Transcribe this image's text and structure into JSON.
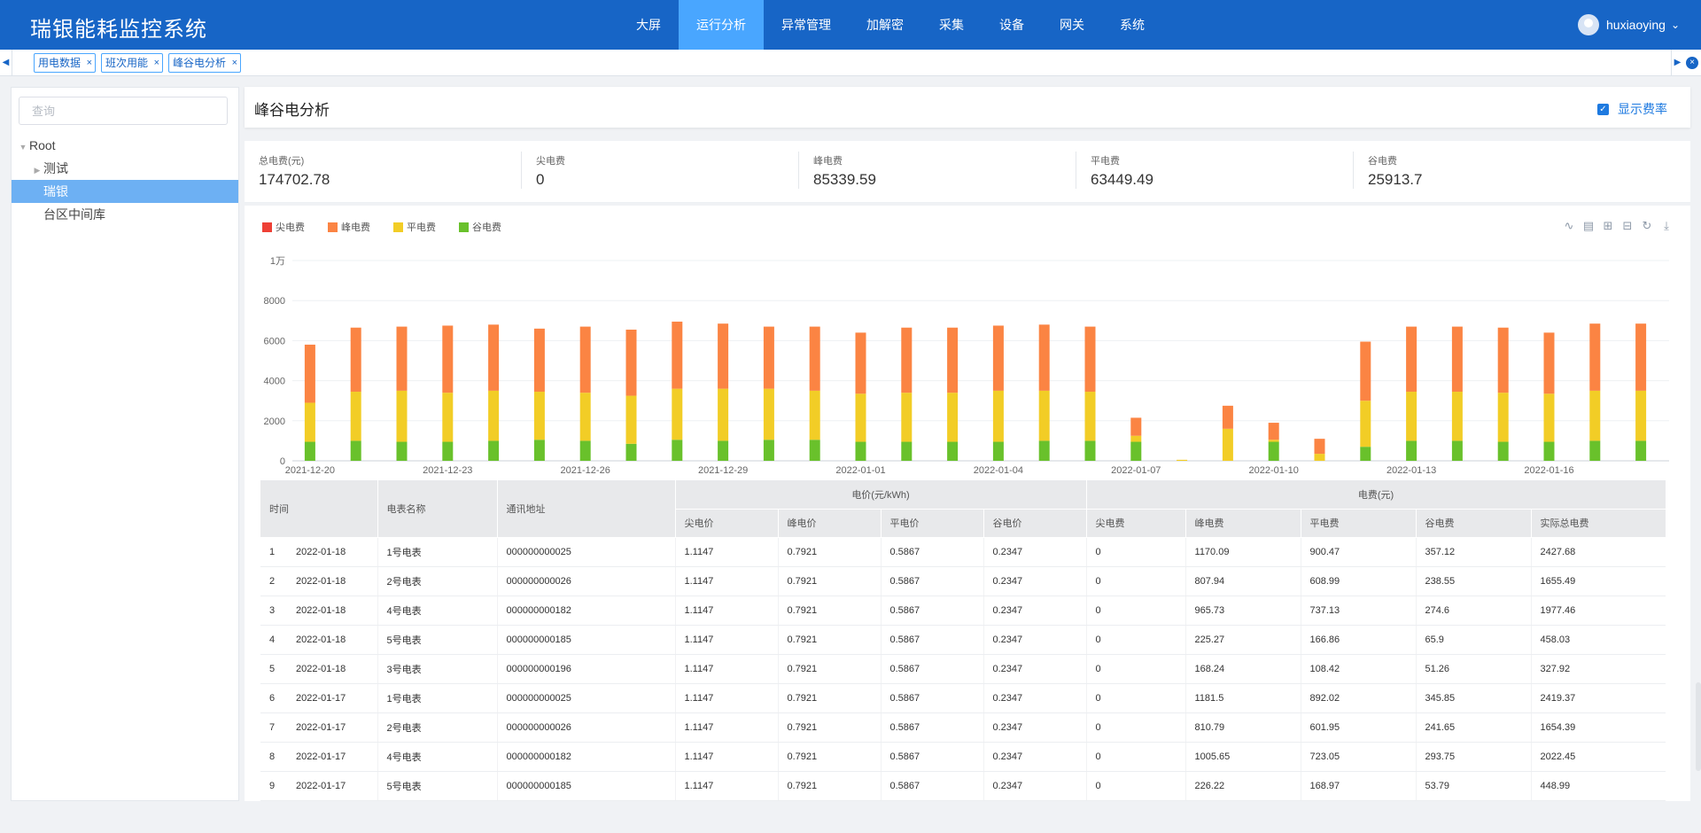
{
  "header": {
    "brand": "瑞银能耗监控系统",
    "nav": [
      "大屏",
      "运行分析",
      "异常管理",
      "加解密",
      "采集",
      "设备",
      "网关",
      "系统"
    ],
    "active_nav": 1,
    "username": "huxiaoying"
  },
  "tabs": [
    {
      "label": "用电数据"
    },
    {
      "label": "班次用能"
    },
    {
      "label": "峰谷电分析"
    }
  ],
  "sidebar": {
    "search_placeholder": "查询",
    "tree": [
      {
        "label": "Root",
        "level": 0,
        "caret": "expanded",
        "selected": false
      },
      {
        "label": "测试",
        "level": 1,
        "caret": "collapsed",
        "selected": false
      },
      {
        "label": "瑞银",
        "level": 1,
        "caret": "none",
        "selected": true
      },
      {
        "label": "台区中间库",
        "level": 1,
        "caret": "none",
        "selected": false
      }
    ]
  },
  "main": {
    "title": "峰谷电分析",
    "rate_toggle_label": "显示费率",
    "rate_toggle_checked": true,
    "stats": [
      {
        "label": "总电费(元)",
        "value": "174702.78"
      },
      {
        "label": "尖电费",
        "value": "0"
      },
      {
        "label": "峰电费",
        "value": "85339.59"
      },
      {
        "label": "平电费",
        "value": "63449.49"
      },
      {
        "label": "谷电费",
        "value": "25913.7"
      }
    ]
  },
  "colors": {
    "header_bg": "#1765c6",
    "nav_active": "#49a6ff",
    "sharp": "#ee4035",
    "peak": "#fb8443",
    "flat": "#f2cd26",
    "valley": "#69c12b"
  },
  "chart_data": {
    "type": "bar",
    "stacked": true,
    "legend": [
      "尖电费",
      "峰电费",
      "平电费",
      "谷电费"
    ],
    "legend_position": "top-left",
    "ylim": [
      0,
      10000
    ],
    "yticks": [
      "0",
      "2000",
      "4000",
      "6000",
      "8000",
      "1万"
    ],
    "x_ticks_shown": [
      "2021-12-20",
      "2021-12-23",
      "2021-12-26",
      "2021-12-29",
      "2022-01-01",
      "2022-01-04",
      "2022-01-07",
      "2022-01-10",
      "2022-01-13",
      "2022-01-16"
    ],
    "categories": [
      "2021-12-20",
      "2021-12-21",
      "2021-12-22",
      "2021-12-23",
      "2021-12-24",
      "2021-12-25",
      "2021-12-26",
      "2021-12-27",
      "2021-12-28",
      "2021-12-29",
      "2021-12-30",
      "2021-12-31",
      "2022-01-01",
      "2022-01-02",
      "2022-01-03",
      "2022-01-04",
      "2022-01-05",
      "2022-01-06",
      "2022-01-07",
      "2022-01-08",
      "2022-01-09",
      "2022-01-10",
      "2022-01-11",
      "2022-01-12",
      "2022-01-13",
      "2022-01-14",
      "2022-01-15",
      "2022-01-16",
      "2022-01-17",
      "2022-01-18"
    ],
    "series": [
      {
        "name": "尖电费",
        "values": [
          0,
          0,
          0,
          0,
          0,
          0,
          0,
          0,
          0,
          0,
          0,
          0,
          0,
          0,
          0,
          0,
          0,
          0,
          0,
          0,
          0,
          0,
          0,
          0,
          0,
          0,
          0,
          0,
          0,
          0
        ]
      },
      {
        "name": "谷电费",
        "values": [
          950,
          1000,
          950,
          950,
          1000,
          1050,
          1000,
          850,
          1050,
          1000,
          1050,
          1050,
          950,
          950,
          950,
          950,
          1000,
          1000,
          950,
          0,
          0,
          950,
          0,
          700,
          1000,
          1000,
          950,
          950,
          1000,
          1000
        ]
      },
      {
        "name": "平电费",
        "values": [
          1950,
          2450,
          2550,
          2450,
          2500,
          2400,
          2400,
          2400,
          2550,
          2600,
          2550,
          2450,
          2400,
          2450,
          2450,
          2550,
          2500,
          2450,
          300,
          50,
          1600,
          100,
          350,
          2300,
          2450,
          2450,
          2450,
          2400,
          2500,
          2500
        ]
      },
      {
        "name": "峰电费",
        "values": [
          2900,
          3200,
          3200,
          3350,
          3300,
          3150,
          3300,
          3300,
          3350,
          3250,
          3100,
          3200,
          3050,
          3250,
          3250,
          3250,
          3300,
          3250,
          900,
          0,
          1150,
          850,
          750,
          2950,
          3250,
          3250,
          3250,
          3050,
          3350,
          3350
        ]
      }
    ]
  },
  "table": {
    "group_price": "电价(元/kWh)",
    "group_fee": "电费(元)",
    "col_time": "时间",
    "col_meter": "电表名称",
    "col_addr": "通讯地址",
    "price_cols": [
      "尖电价",
      "峰电价",
      "平电价",
      "谷电价"
    ],
    "fee_cols": [
      "尖电费",
      "峰电费",
      "平电费",
      "谷电费",
      "实际总电费"
    ],
    "rows": [
      [
        "1",
        "2022-01-18",
        "1号电表",
        "000000000025",
        "1.1147",
        "0.7921",
        "0.5867",
        "0.2347",
        "0",
        "1170.09",
        "900.47",
        "357.12",
        "2427.68"
      ],
      [
        "2",
        "2022-01-18",
        "2号电表",
        "000000000026",
        "1.1147",
        "0.7921",
        "0.5867",
        "0.2347",
        "0",
        "807.94",
        "608.99",
        "238.55",
        "1655.49"
      ],
      [
        "3",
        "2022-01-18",
        "4号电表",
        "000000000182",
        "1.1147",
        "0.7921",
        "0.5867",
        "0.2347",
        "0",
        "965.73",
        "737.13",
        "274.6",
        "1977.46"
      ],
      [
        "4",
        "2022-01-18",
        "5号电表",
        "000000000185",
        "1.1147",
        "0.7921",
        "0.5867",
        "0.2347",
        "0",
        "225.27",
        "166.86",
        "65.9",
        "458.03"
      ],
      [
        "5",
        "2022-01-18",
        "3号电表",
        "000000000196",
        "1.1147",
        "0.7921",
        "0.5867",
        "0.2347",
        "0",
        "168.24",
        "108.42",
        "51.26",
        "327.92"
      ],
      [
        "6",
        "2022-01-17",
        "1号电表",
        "000000000025",
        "1.1147",
        "0.7921",
        "0.5867",
        "0.2347",
        "0",
        "1181.5",
        "892.02",
        "345.85",
        "2419.37"
      ],
      [
        "7",
        "2022-01-17",
        "2号电表",
        "000000000026",
        "1.1147",
        "0.7921",
        "0.5867",
        "0.2347",
        "0",
        "810.79",
        "601.95",
        "241.65",
        "1654.39"
      ],
      [
        "8",
        "2022-01-17",
        "4号电表",
        "000000000182",
        "1.1147",
        "0.7921",
        "0.5867",
        "0.2347",
        "0",
        "1005.65",
        "723.05",
        "293.75",
        "2022.45"
      ],
      [
        "9",
        "2022-01-17",
        "5号电表",
        "000000000185",
        "1.1147",
        "0.7921",
        "0.5867",
        "0.2347",
        "0",
        "226.22",
        "168.97",
        "53.79",
        "448.99"
      ]
    ]
  }
}
